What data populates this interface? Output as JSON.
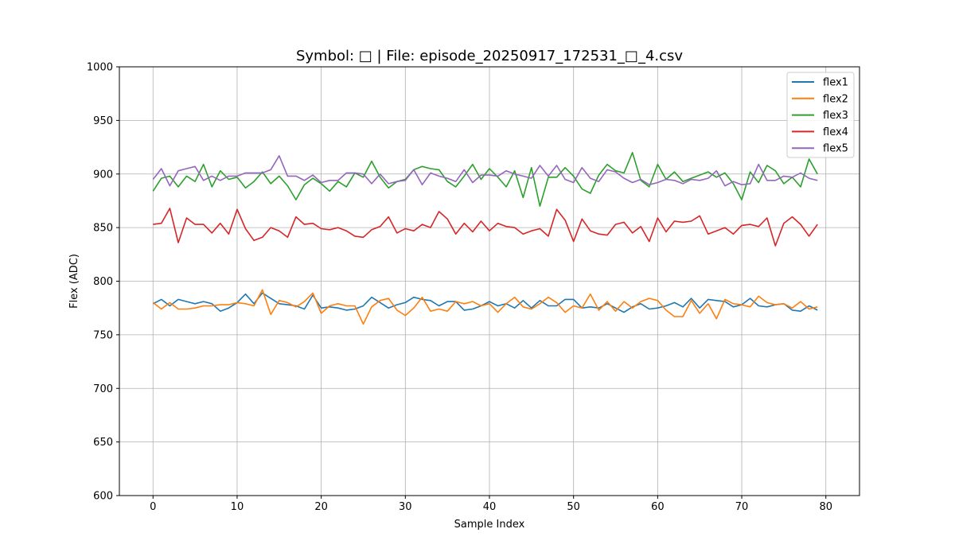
{
  "chart_data": {
    "type": "line",
    "title": "Symbol: □ | File: episode_20250917_172531_□_4.csv",
    "xlabel": "Sample Index",
    "ylabel": "Flex (ADC)",
    "xlim": [
      -4,
      84
    ],
    "ylim": [
      600,
      1000
    ],
    "xticks": [
      0,
      10,
      20,
      30,
      40,
      50,
      60,
      70,
      80
    ],
    "yticks": [
      600,
      650,
      700,
      750,
      800,
      850,
      900,
      950,
      1000
    ],
    "grid": true,
    "legend_position": "top-right",
    "x": [
      0,
      1,
      2,
      3,
      4,
      5,
      6,
      7,
      8,
      9,
      10,
      11,
      12,
      13,
      14,
      15,
      16,
      17,
      18,
      19,
      20,
      21,
      22,
      23,
      24,
      25,
      26,
      27,
      28,
      29,
      30,
      31,
      32,
      33,
      34,
      35,
      36,
      37,
      38,
      39,
      40,
      41,
      42,
      43,
      44,
      45,
      46,
      47,
      48,
      49,
      50,
      51,
      52,
      53,
      54,
      55,
      56,
      57,
      58,
      59,
      60,
      61,
      62,
      63,
      64,
      65,
      66,
      67,
      68,
      69,
      70,
      71,
      72,
      73,
      74,
      75,
      76,
      77,
      78,
      79
    ],
    "series": [
      {
        "name": "flex1",
        "color": "#1f77b4",
        "values": [
          779,
          783,
          777,
          783,
          781,
          779,
          781,
          779,
          772,
          775,
          780,
          788,
          779,
          789,
          784,
          779,
          778,
          777,
          774,
          787,
          775,
          776,
          775,
          773,
          774,
          777,
          785,
          780,
          775,
          778,
          780,
          785,
          783,
          782,
          777,
          781,
          781,
          773,
          774,
          777,
          781,
          777,
          779,
          775,
          782,
          775,
          782,
          777,
          777,
          783,
          783,
          775,
          776,
          775,
          779,
          775,
          771,
          776,
          779,
          774,
          775,
          777,
          780,
          776,
          784,
          775,
          783,
          782,
          781,
          776,
          778,
          784,
          777,
          776,
          778,
          779,
          773,
          772,
          777,
          773
        ]
      },
      {
        "name": "flex2",
        "color": "#ff7f0e",
        "values": [
          780,
          774,
          780,
          774,
          774,
          775,
          777,
          777,
          778,
          778,
          780,
          779,
          777,
          792,
          769,
          782,
          780,
          776,
          781,
          789,
          770,
          777,
          779,
          777,
          777,
          760,
          776,
          782,
          784,
          773,
          768,
          775,
          785,
          772,
          774,
          772,
          781,
          779,
          781,
          777,
          779,
          771,
          779,
          785,
          776,
          774,
          779,
          785,
          780,
          771,
          777,
          775,
          788,
          773,
          781,
          772,
          781,
          775,
          781,
          784,
          782,
          773,
          767,
          767,
          782,
          770,
          779,
          765,
          783,
          779,
          778,
          776,
          786,
          780,
          778,
          779,
          775,
          781,
          774,
          776
        ]
      },
      {
        "name": "flex3",
        "color": "#2ca02c",
        "values": [
          884,
          896,
          898,
          888,
          898,
          893,
          909,
          888,
          903,
          895,
          897,
          887,
          893,
          902,
          891,
          898,
          889,
          876,
          890,
          896,
          891,
          884,
          893,
          888,
          901,
          897,
          912,
          897,
          887,
          893,
          895,
          904,
          907,
          905,
          904,
          893,
          888,
          898,
          909,
          895,
          905,
          897,
          888,
          903,
          878,
          906,
          870,
          897,
          897,
          906,
          898,
          886,
          882,
          899,
          909,
          903,
          901,
          920,
          894,
          888,
          909,
          895,
          902,
          893,
          896,
          899,
          902,
          897,
          901,
          891,
          876,
          902,
          892,
          908,
          903,
          891,
          897,
          888,
          914,
          900
        ]
      },
      {
        "name": "flex4",
        "color": "#d62728",
        "values": [
          853,
          854,
          868,
          836,
          859,
          853,
          853,
          845,
          854,
          844,
          867,
          849,
          838,
          841,
          850,
          847,
          841,
          860,
          853,
          854,
          849,
          848,
          850,
          847,
          842,
          841,
          848,
          851,
          860,
          845,
          849,
          847,
          853,
          850,
          865,
          858,
          844,
          854,
          846,
          856,
          847,
          854,
          851,
          850,
          844,
          847,
          849,
          842,
          867,
          857,
          837,
          858,
          847,
          844,
          843,
          853,
          855,
          845,
          851,
          837,
          859,
          846,
          856,
          855,
          856,
          861,
          844,
          847,
          850,
          844,
          852,
          853,
          851,
          859,
          833,
          854,
          860,
          853,
          842,
          853
        ]
      },
      {
        "name": "flex5",
        "color": "#9467bd",
        "values": [
          895,
          905,
          889,
          903,
          905,
          907,
          894,
          898,
          894,
          898,
          898,
          901,
          901,
          901,
          904,
          917,
          898,
          898,
          894,
          899,
          892,
          894,
          894,
          901,
          901,
          900,
          891,
          900,
          891,
          893,
          894,
          904,
          890,
          901,
          898,
          896,
          893,
          904,
          892,
          899,
          899,
          898,
          903,
          900,
          898,
          896,
          908,
          898,
          908,
          895,
          892,
          906,
          896,
          893,
          904,
          902,
          896,
          892,
          895,
          890,
          892,
          895,
          894,
          891,
          895,
          894,
          896,
          903,
          889,
          893,
          890,
          891,
          909,
          894,
          894,
          898,
          897,
          901,
          896,
          894
        ]
      }
    ]
  }
}
